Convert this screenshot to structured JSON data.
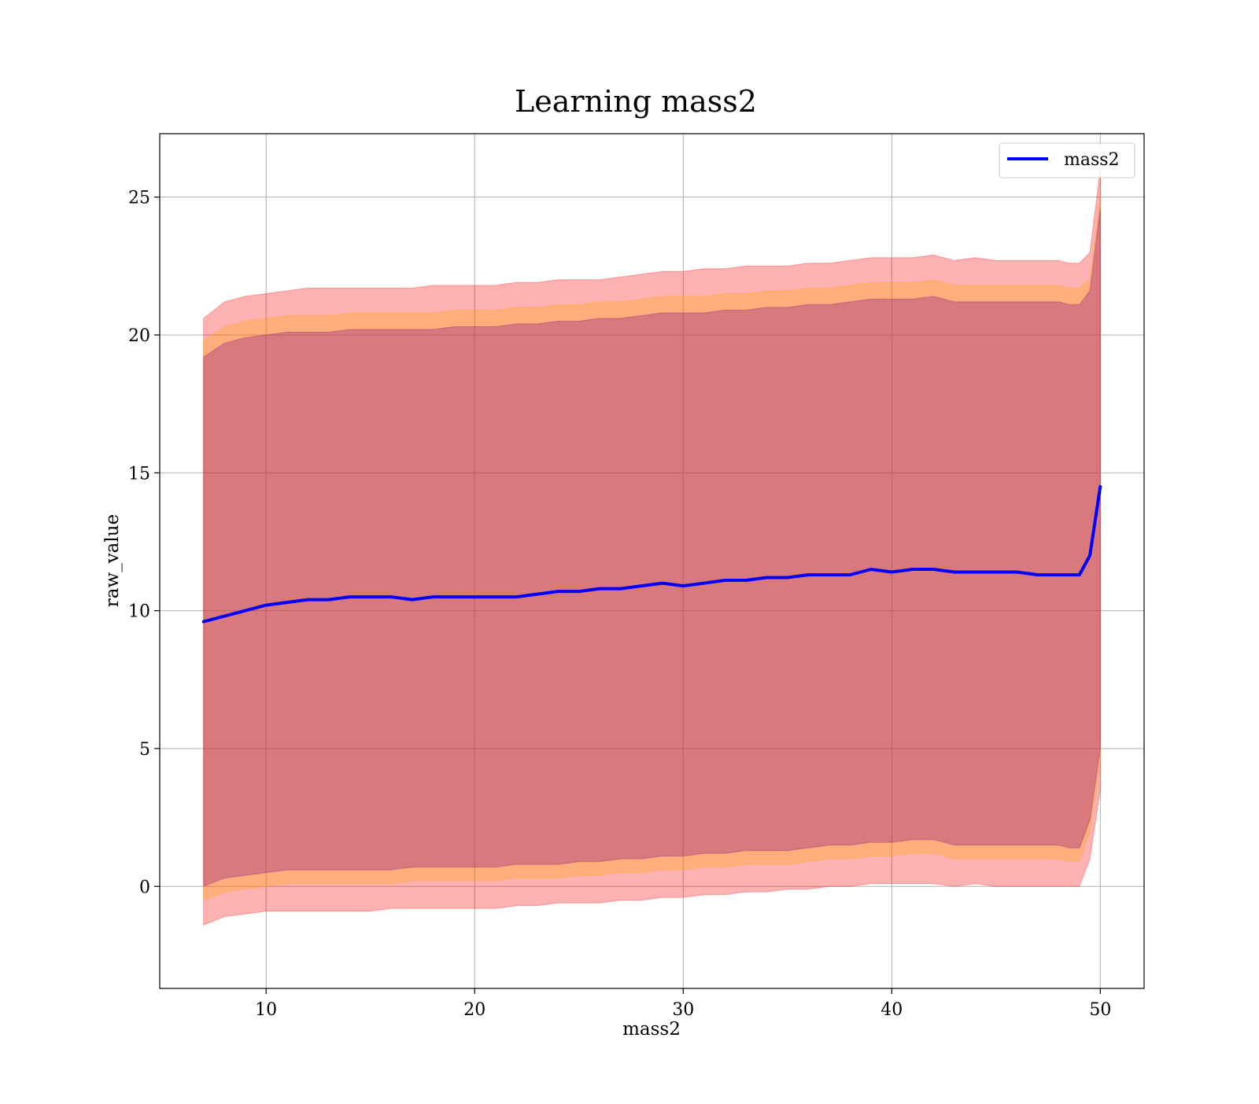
{
  "chart_data": {
    "type": "area",
    "title": "Learning mass2",
    "xlabel": "mass2",
    "ylabel": "raw_value",
    "xlim": [
      4.9,
      52.1
    ],
    "ylim": [
      -3.7,
      27.3
    ],
    "x_ticks": [
      10,
      20,
      30,
      40,
      50
    ],
    "y_ticks": [
      0,
      5,
      10,
      15,
      20,
      25
    ],
    "grid": true,
    "legend": {
      "position": "top-right",
      "entries": [
        "mass2"
      ]
    },
    "x": [
      7,
      8,
      9,
      10,
      11,
      12,
      13,
      14,
      15,
      16,
      17,
      18,
      19,
      20,
      21,
      22,
      23,
      24,
      25,
      26,
      27,
      28,
      29,
      30,
      31,
      32,
      33,
      34,
      35,
      36,
      37,
      38,
      39,
      40,
      41,
      42,
      43,
      44,
      45,
      46,
      47,
      48,
      48.5,
      49,
      49.5,
      50
    ],
    "series": [
      {
        "name": "mass2",
        "role": "line",
        "color": "#0000ff",
        "values": [
          9.6,
          9.8,
          10.0,
          10.2,
          10.3,
          10.4,
          10.4,
          10.5,
          10.5,
          10.5,
          10.4,
          10.5,
          10.5,
          10.5,
          10.5,
          10.5,
          10.6,
          10.7,
          10.7,
          10.8,
          10.8,
          10.9,
          11.0,
          10.9,
          11.0,
          11.1,
          11.1,
          11.2,
          11.2,
          11.3,
          11.3,
          11.3,
          11.5,
          11.4,
          11.5,
          11.5,
          11.4,
          11.4,
          11.4,
          11.4,
          11.3,
          11.3,
          11.3,
          11.3,
          12.0,
          14.5
        ]
      }
    ],
    "bands": [
      {
        "color": "#ff0000",
        "opacity": 0.3,
        "upper": [
          20.6,
          21.2,
          21.4,
          21.5,
          21.6,
          21.7,
          21.7,
          21.7,
          21.7,
          21.7,
          21.7,
          21.8,
          21.8,
          21.8,
          21.8,
          21.9,
          21.9,
          22.0,
          22.0,
          22.0,
          22.1,
          22.2,
          22.3,
          22.3,
          22.4,
          22.4,
          22.5,
          22.5,
          22.5,
          22.6,
          22.6,
          22.7,
          22.8,
          22.8,
          22.8,
          22.9,
          22.7,
          22.8,
          22.7,
          22.7,
          22.7,
          22.7,
          22.6,
          22.6,
          23.0,
          26.0
        ],
        "lower": [
          -1.4,
          -1.1,
          -1.0,
          -0.9,
          -0.9,
          -0.9,
          -0.9,
          -0.9,
          -0.9,
          -0.8,
          -0.8,
          -0.8,
          -0.8,
          -0.8,
          -0.8,
          -0.7,
          -0.7,
          -0.6,
          -0.6,
          -0.6,
          -0.5,
          -0.5,
          -0.4,
          -0.4,
          -0.3,
          -0.3,
          -0.2,
          -0.2,
          -0.1,
          -0.1,
          0.0,
          0.0,
          0.1,
          0.1,
          0.1,
          0.1,
          0.0,
          0.1,
          0.0,
          0.0,
          0.0,
          0.0,
          0.0,
          0.0,
          1.0,
          3.5
        ]
      },
      {
        "color": "#ffa500",
        "opacity": 0.3,
        "upper": [
          19.8,
          20.3,
          20.5,
          20.6,
          20.7,
          20.7,
          20.7,
          20.8,
          20.8,
          20.8,
          20.8,
          20.8,
          20.9,
          20.9,
          20.9,
          21.0,
          21.0,
          21.1,
          21.1,
          21.2,
          21.2,
          21.3,
          21.4,
          21.4,
          21.4,
          21.5,
          21.5,
          21.6,
          21.6,
          21.7,
          21.7,
          21.8,
          21.9,
          21.9,
          21.9,
          22.0,
          21.8,
          21.8,
          21.8,
          21.8,
          21.8,
          21.8,
          21.7,
          21.7,
          22.0,
          25.0
        ],
        "lower": [
          -0.5,
          -0.2,
          -0.1,
          0.0,
          0.1,
          0.1,
          0.1,
          0.1,
          0.1,
          0.1,
          0.2,
          0.2,
          0.2,
          0.2,
          0.2,
          0.3,
          0.3,
          0.3,
          0.4,
          0.4,
          0.5,
          0.5,
          0.6,
          0.6,
          0.7,
          0.7,
          0.8,
          0.8,
          0.8,
          0.9,
          1.0,
          1.0,
          1.1,
          1.1,
          1.2,
          1.2,
          1.0,
          1.0,
          1.0,
          1.0,
          1.0,
          1.0,
          0.9,
          0.9,
          2.0,
          4.5
        ]
      },
      {
        "color": "#800080",
        "opacity": 0.3,
        "upper": [
          19.2,
          19.7,
          19.9,
          20.0,
          20.1,
          20.1,
          20.1,
          20.2,
          20.2,
          20.2,
          20.2,
          20.2,
          20.3,
          20.3,
          20.3,
          20.4,
          20.4,
          20.5,
          20.5,
          20.6,
          20.6,
          20.7,
          20.8,
          20.8,
          20.8,
          20.9,
          20.9,
          21.0,
          21.0,
          21.1,
          21.1,
          21.2,
          21.3,
          21.3,
          21.3,
          21.4,
          21.2,
          21.2,
          21.2,
          21.2,
          21.2,
          21.2,
          21.1,
          21.1,
          21.6,
          24.6
        ],
        "lower": [
          0.0,
          0.3,
          0.4,
          0.5,
          0.6,
          0.6,
          0.6,
          0.6,
          0.6,
          0.6,
          0.7,
          0.7,
          0.7,
          0.7,
          0.7,
          0.8,
          0.8,
          0.8,
          0.9,
          0.9,
          1.0,
          1.0,
          1.1,
          1.1,
          1.2,
          1.2,
          1.3,
          1.3,
          1.3,
          1.4,
          1.5,
          1.5,
          1.6,
          1.6,
          1.7,
          1.7,
          1.5,
          1.5,
          1.5,
          1.5,
          1.5,
          1.5,
          1.4,
          1.4,
          2.4,
          5.0
        ]
      }
    ]
  }
}
